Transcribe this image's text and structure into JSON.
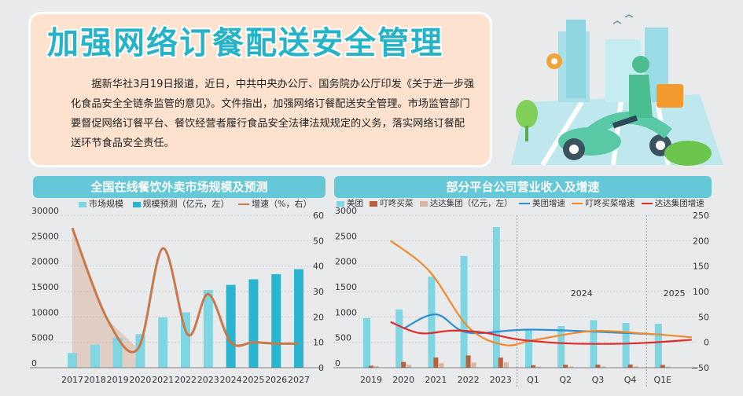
{
  "header": {
    "title": "加强网络订餐配送安全管理",
    "paragraph": "据新华社3月19日报道，近日，中共中央办公厅、国务院办公厅印发《关于进一步强化食品安全全链条监管的意见》。文件指出，加强网络订餐配送安全管理。市场监管部门要督促网络订餐平台、餐饮经营者履行食品安全法律法规规定的义务，落实网络订餐配送环节食品安全责任。"
  },
  "colors": {
    "actual_bar": "#7fd6e3",
    "forecast_bar": "#29b5cf",
    "growth_line": "#c8794a",
    "meituan_bar": "#7fd6e3",
    "dingdong_bar": "#b9613d",
    "dada_bar": "#d9b49f",
    "meituan_line": "#2b8fd0",
    "dingdong_line": "#f08a2c",
    "dada_line": "#e02b2b"
  },
  "chart_data": [
    {
      "type": "bar",
      "title": "全国在线餐饮外卖市场规模及预测",
      "categories": [
        "2017",
        "2018",
        "2019",
        "2020",
        "2021",
        "2022",
        "2023",
        "2024",
        "2025",
        "2026",
        "2027"
      ],
      "series": [
        {
          "name": "市场规模",
          "values": [
            2900,
            4500,
            5900,
            6600,
            9900,
            10900,
            15300,
            null,
            null,
            null,
            null
          ]
        },
        {
          "name": "规模预测（亿元，左）",
          "values": [
            null,
            null,
            null,
            null,
            null,
            null,
            null,
            16300,
            17400,
            18400,
            19400
          ]
        },
        {
          "name": "增速（%，右）",
          "type": "line",
          "axis": "right",
          "values": [
            55,
            null,
            20,
            7,
            47,
            null,
            26,
            null,
            null,
            null,
            null
          ]
        }
      ],
      "ylim_left": [
        0,
        30000
      ],
      "yticks_left": [
        "0",
        "5000",
        "10000",
        "15000",
        "20000",
        "25000",
        "30000"
      ],
      "ylim_right": [
        0,
        60
      ],
      "yticks_right": [
        "0",
        "10",
        "20",
        "30",
        "40",
        "50",
        "60"
      ],
      "growth_points": [
        [
          0,
          55
        ],
        [
          1.55,
          19
        ],
        [
          2.9,
          7.5
        ],
        [
          4,
          47
        ],
        [
          5.1,
          13
        ],
        [
          6,
          29
        ],
        [
          7,
          10
        ],
        [
          8,
          10
        ],
        [
          9,
          9.5
        ],
        [
          10,
          9.5
        ]
      ]
    },
    {
      "type": "bar",
      "title": "部分平台公司营业收入及增速",
      "categories": [
        "2019",
        "2020",
        "2021",
        "2022",
        "2023",
        "Q1",
        "Q2",
        "Q3",
        "Q4",
        "Q1E"
      ],
      "period_labels": [
        "2024",
        "2025"
      ],
      "series": [
        {
          "name": "美团",
          "values": [
            975,
            1148,
            1791,
            2199,
            2768,
            733,
            820,
            936,
            882,
            866
          ]
        },
        {
          "name": "叮咚买菜",
          "values": [
            39,
            113,
            201,
            242,
            199,
            50,
            58,
            60,
            63,
            55
          ]
        },
        {
          "name": "达达集团（亿元，左）",
          "values": [
            31,
            57,
            88,
            103,
            104,
            22,
            24,
            24,
            26,
            22
          ]
        },
        {
          "name": "美团增速",
          "type": "line",
          "axis": "right",
          "points": [
            [
              1,
              27
            ],
            [
              2,
              55
            ],
            [
              3,
              19
            ],
            [
              5,
              25
            ],
            [
              9,
              15
            ]
          ]
        },
        {
          "name": "叮咚买菜增速",
          "type": "line",
          "axis": "right",
          "points": [
            [
              0.6,
              200
            ],
            [
              1.8,
              140
            ],
            [
              3,
              30
            ],
            [
              4.1,
              -5
            ],
            [
              5,
              4
            ],
            [
              6.8,
              22
            ],
            [
              8.5,
              17
            ],
            [
              9.9,
              10
            ]
          ]
        },
        {
          "name": "达达集团增速",
          "type": "line",
          "axis": "right",
          "points": [
            [
              0.6,
              40
            ],
            [
              1.5,
              18
            ],
            [
              2.5,
              23
            ],
            [
              3.5,
              19
            ],
            [
              4.5,
              6
            ],
            [
              6,
              -2
            ],
            [
              7.5,
              -3
            ],
            [
              8.5,
              -1
            ],
            [
              9.9,
              5
            ]
          ]
        }
      ],
      "ylim_left": [
        0,
        3000
      ],
      "yticks_left": [
        "0",
        "500",
        "1000",
        "1500",
        "2000",
        "2500",
        "3000"
      ],
      "ylim_right": [
        -50,
        250
      ],
      "yticks_right": [
        "−50",
        "0",
        "50",
        "100",
        "150",
        "200",
        "250"
      ]
    }
  ]
}
